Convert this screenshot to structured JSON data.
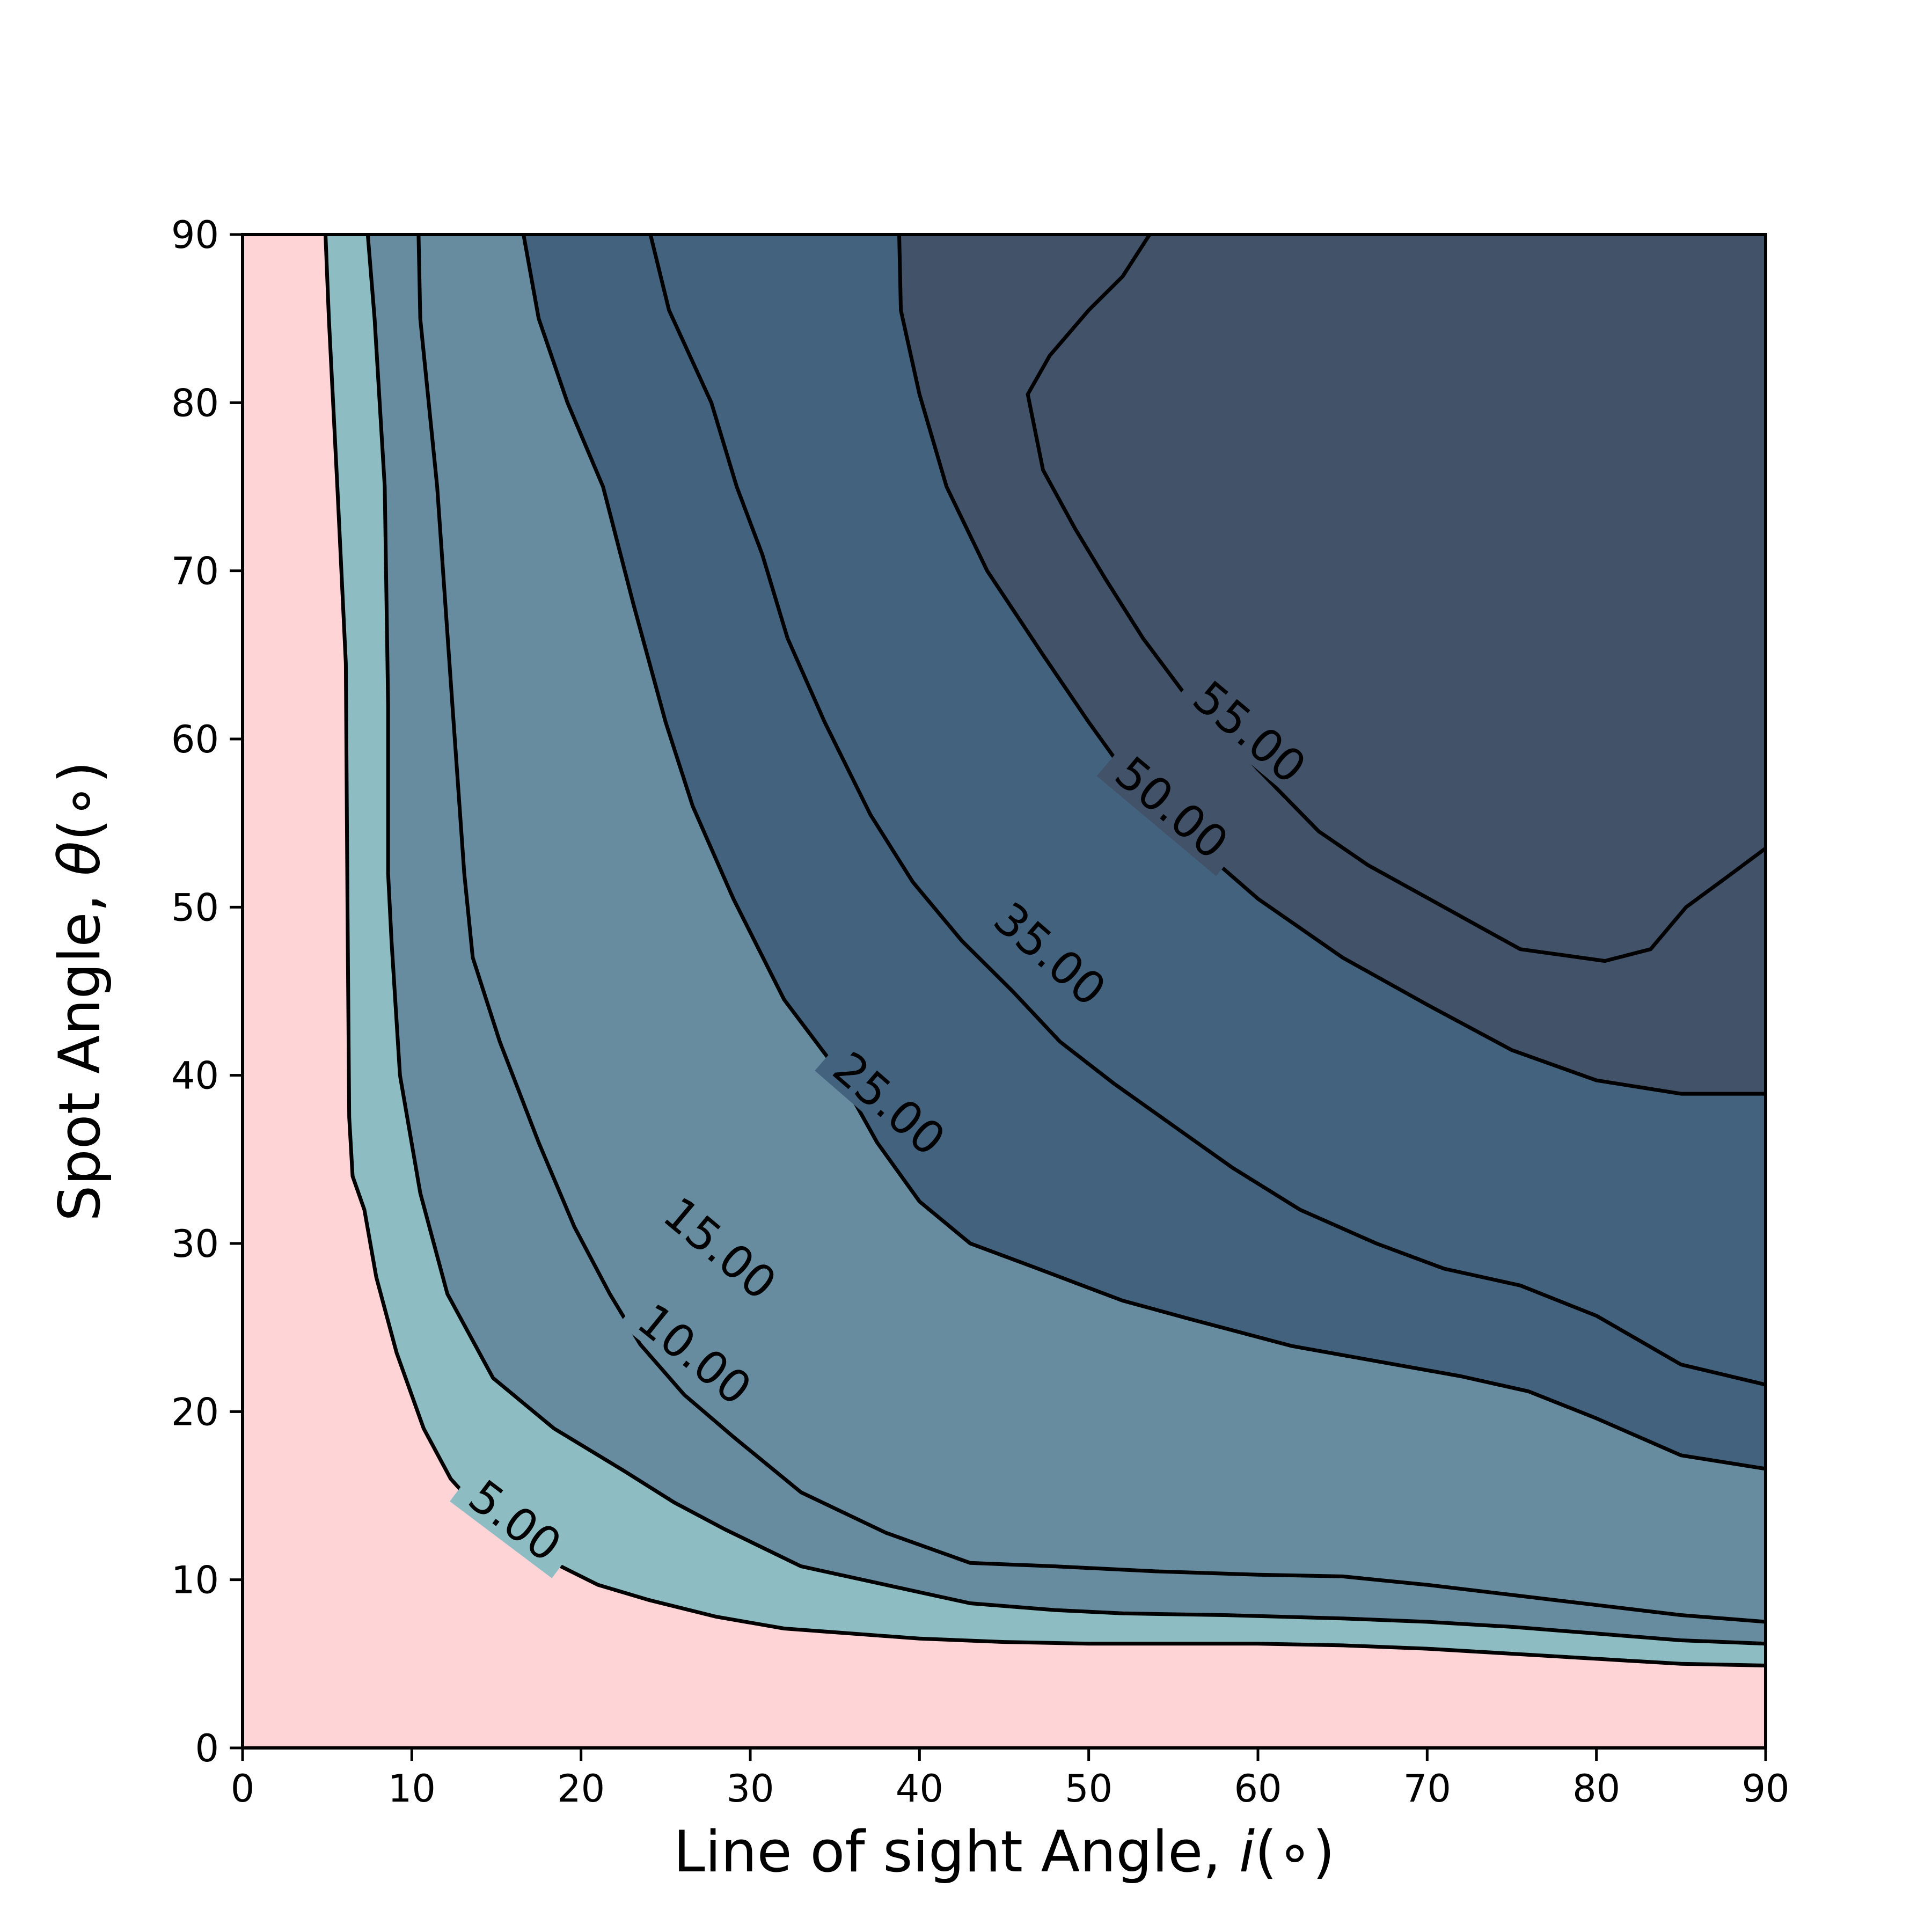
{
  "chart_data": {
    "type": "contour",
    "xlabel_text": "Line of sight Angle, ",
    "xlabel_var": "i",
    "xlabel_unit": "(∘)",
    "ylabel_text": "Spot Angle, ",
    "ylabel_var": "θ",
    "ylabel_unit": "(∘)",
    "xlim": [
      0,
      90
    ],
    "ylim": [
      0,
      90
    ],
    "x_ticks": [
      0,
      10,
      20,
      30,
      40,
      50,
      60,
      70,
      80,
      90
    ],
    "y_ticks": [
      0,
      10,
      20,
      30,
      40,
      50,
      60,
      70,
      80,
      90
    ],
    "x_tick_labels": [
      "0",
      "10",
      "20",
      "30",
      "40",
      "50",
      "60",
      "70",
      "80",
      "90"
    ],
    "y_tick_labels": [
      "0",
      "10",
      "20",
      "30",
      "40",
      "50",
      "60",
      "70",
      "80",
      "90"
    ],
    "fill_colors": [
      "#ffd4d6",
      "#8dbcc3",
      "#678c9f",
      "#43627e",
      "#425268"
    ],
    "levels": [
      {
        "value": 5,
        "label": "5.00",
        "points": [
          [
            4.9,
            90
          ],
          [
            5.1,
            85
          ],
          [
            5.6,
            75
          ],
          [
            6.1,
            64.5
          ],
          [
            6.2,
            50
          ],
          [
            6.3,
            37.5
          ],
          [
            6.5,
            34
          ],
          [
            7.2,
            32
          ],
          [
            7.9,
            28
          ],
          [
            9.1,
            23.5
          ],
          [
            10.7,
            19
          ],
          [
            12.3,
            16
          ],
          [
            14.1,
            14
          ],
          [
            16.2,
            12
          ],
          [
            18.4,
            11
          ],
          [
            21,
            9.7
          ],
          [
            24,
            8.8
          ],
          [
            28,
            7.8
          ],
          [
            32,
            7.1
          ],
          [
            36,
            6.8
          ],
          [
            40,
            6.5
          ],
          [
            45,
            6.3
          ],
          [
            50,
            6.2
          ],
          [
            55,
            6.2
          ],
          [
            60,
            6.2
          ],
          [
            65,
            6.1
          ],
          [
            70,
            5.9
          ],
          [
            75,
            5.6
          ],
          [
            80,
            5.3
          ],
          [
            85,
            5
          ],
          [
            90,
            4.9
          ]
        ],
        "label_at": [
          16.1,
          13.5
        ],
        "label_angle": 37
      },
      {
        "value": 10,
        "label": "10.00",
        "points": [
          [
            7.4,
            90
          ],
          [
            7.8,
            85
          ],
          [
            8.4,
            75
          ],
          [
            8.6,
            62
          ],
          [
            8.6,
            52
          ],
          [
            8.8,
            48
          ],
          [
            9.3,
            40
          ],
          [
            10.5,
            33
          ],
          [
            12.1,
            27
          ],
          [
            14.8,
            22
          ],
          [
            18.4,
            19
          ],
          [
            22.5,
            16.5
          ],
          [
            25.5,
            14.6
          ],
          [
            28.5,
            13
          ],
          [
            33,
            10.8
          ],
          [
            38,
            9.7
          ],
          [
            43,
            8.6
          ],
          [
            48,
            8.2
          ],
          [
            52,
            8
          ],
          [
            58,
            7.9
          ],
          [
            65,
            7.7
          ],
          [
            70,
            7.5
          ],
          [
            75,
            7.2
          ],
          [
            80,
            6.8
          ],
          [
            85,
            6.4
          ],
          [
            90,
            6.2
          ]
        ],
        "label_at": [
          26.7,
          23.4
        ],
        "label_angle": 39
      },
      {
        "value": 15,
        "label": "15.00",
        "points": [
          [
            10.4,
            90
          ],
          [
            10.5,
            85
          ],
          [
            11.5,
            75
          ],
          [
            12.4,
            62
          ],
          [
            13.1,
            52
          ],
          [
            13.6,
            47
          ],
          [
            15.2,
            42
          ],
          [
            17.5,
            36
          ],
          [
            19.6,
            31
          ],
          [
            21.7,
            27
          ],
          [
            23.5,
            24
          ],
          [
            26.1,
            21
          ],
          [
            29,
            18.5
          ],
          [
            33,
            15.2
          ],
          [
            38,
            12.8
          ],
          [
            43,
            11
          ],
          [
            48,
            10.8
          ],
          [
            54,
            10.5
          ],
          [
            60,
            10.3
          ],
          [
            65,
            10.2
          ],
          [
            70,
            9.7
          ],
          [
            75,
            9.1
          ],
          [
            80,
            8.5
          ],
          [
            85,
            7.9
          ],
          [
            90,
            7.5
          ]
        ],
        "label_at": [
          28.2,
          29.7
        ],
        "label_angle": 40
      },
      {
        "value": 25,
        "label": "25.00",
        "points": [
          [
            16.6,
            90
          ],
          [
            17.5,
            85
          ],
          [
            19.2,
            80
          ],
          [
            21.3,
            75
          ],
          [
            23.1,
            68
          ],
          [
            25,
            61
          ],
          [
            26.6,
            56
          ],
          [
            29,
            50.5
          ],
          [
            32,
            44.5
          ],
          [
            35,
            40.5
          ],
          [
            37.5,
            36
          ],
          [
            40,
            32.5
          ],
          [
            43,
            30
          ],
          [
            47,
            28.5
          ],
          [
            52,
            26.6
          ],
          [
            56,
            25.5
          ],
          [
            62,
            23.9
          ],
          [
            67,
            23
          ],
          [
            72,
            22.1
          ],
          [
            76,
            21.2
          ],
          [
            80,
            19.6
          ],
          [
            85,
            17.4
          ],
          [
            90,
            16.6
          ]
        ],
        "label_at": [
          38.2,
          38.3
        ],
        "label_angle": 41
      },
      {
        "value": 35,
        "label": "35.00",
        "points": [
          [
            24.1,
            90
          ],
          [
            25.2,
            85.5
          ],
          [
            27.7,
            80
          ],
          [
            29.2,
            75
          ],
          [
            30.7,
            71
          ],
          [
            32.2,
            66
          ],
          [
            34.4,
            61
          ],
          [
            37.1,
            55.5
          ],
          [
            39.6,
            51.5
          ],
          [
            42.5,
            48
          ],
          [
            45.5,
            45
          ],
          [
            48.3,
            42
          ],
          [
            51.5,
            39.5
          ],
          [
            55,
            37
          ],
          [
            58.5,
            34.5
          ],
          [
            62.5,
            32
          ],
          [
            67,
            30
          ],
          [
            71,
            28.5
          ],
          [
            75.5,
            27.5
          ],
          [
            80,
            25.7
          ],
          [
            85,
            22.8
          ],
          [
            90,
            21.6
          ]
        ],
        "label_at": [
          47.7,
          47.2
        ],
        "label_angle": 41
      },
      {
        "value": 50,
        "label": "50.00",
        "points": [
          [
            38.8,
            90
          ],
          [
            38.9,
            85.5
          ],
          [
            40,
            80.5
          ],
          [
            41.6,
            75
          ],
          [
            44,
            70
          ],
          [
            47.3,
            65
          ],
          [
            50,
            61
          ],
          [
            52.5,
            57.5
          ],
          [
            56,
            54
          ],
          [
            60,
            50.5
          ],
          [
            65,
            47
          ],
          [
            70,
            44.2
          ],
          [
            75,
            41.5
          ],
          [
            80,
            39.7
          ],
          [
            85,
            38.9
          ],
          [
            90,
            38.9
          ]
        ],
        "label_at": [
          54.9,
          55.9
        ],
        "label_angle": 40
      },
      {
        "value": 55,
        "label": "55.00",
        "points": [
          [
            53.6,
            90
          ],
          [
            52,
            87.5
          ],
          [
            50,
            85.5
          ],
          [
            47.7,
            82.8
          ],
          [
            46.4,
            80.5
          ],
          [
            47.3,
            76
          ],
          [
            49.2,
            72.5
          ],
          [
            51,
            69.5
          ],
          [
            53.2,
            66
          ],
          [
            55.8,
            62.5
          ],
          [
            57,
            61.5
          ],
          [
            60,
            58.2
          ],
          [
            63.6,
            54.5
          ],
          [
            66.5,
            52.5
          ],
          [
            71,
            50
          ],
          [
            75.5,
            47.5
          ],
          [
            80.5,
            46.8
          ],
          [
            83.2,
            47.5
          ],
          [
            85.3,
            50
          ],
          [
            88,
            52
          ],
          [
            90,
            53.5
          ]
        ],
        "label_at": [
          59.5,
          60.4
        ],
        "label_angle": 40
      }
    ]
  }
}
